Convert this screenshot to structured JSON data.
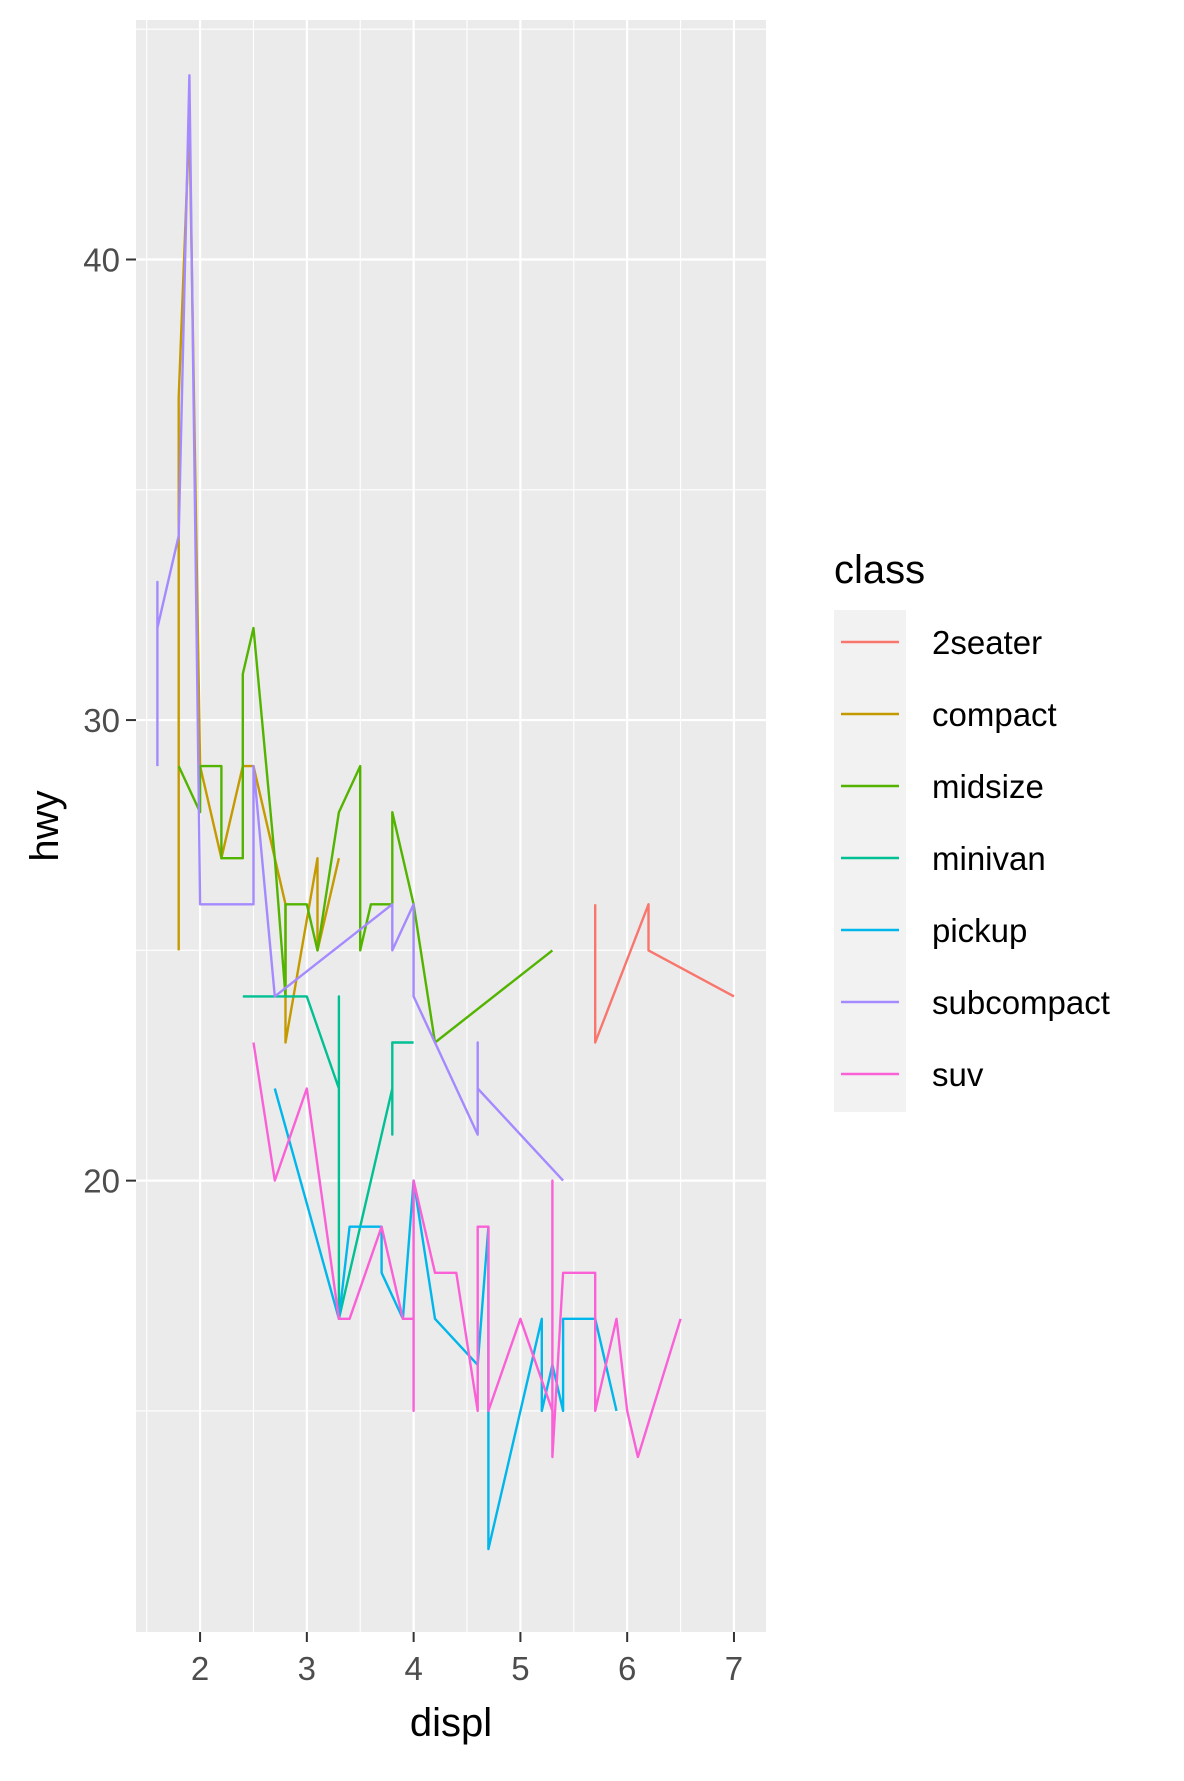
{
  "chart_data": {
    "type": "line",
    "title": "",
    "xlabel": "displ",
    "ylabel": "hwy",
    "xlim": [
      1.4,
      7.3
    ],
    "ylim": [
      10.2,
      45.2
    ],
    "x_ticks": [
      2,
      3,
      4,
      5,
      6,
      7
    ],
    "x_tick_labels": [
      "2",
      "3",
      "4",
      "5",
      "6",
      "7"
    ],
    "y_ticks": [
      20,
      30,
      40
    ],
    "y_tick_labels": [
      "20",
      "30",
      "40"
    ],
    "grid": true,
    "legend": {
      "title": "class",
      "position": "right"
    },
    "series": [
      {
        "name": "2seater",
        "color": "#F8766D",
        "points": [
          [
            5.7,
            26
          ],
          [
            5.7,
            23
          ],
          [
            6.2,
            26
          ],
          [
            6.2,
            25
          ],
          [
            7.0,
            24
          ]
        ]
      },
      {
        "name": "compact",
        "color": "#C49A00",
        "points": [
          [
            1.8,
            25
          ],
          [
            1.8,
            37
          ],
          [
            1.9,
            43
          ],
          [
            2.0,
            29
          ],
          [
            2.2,
            27
          ],
          [
            2.4,
            29
          ],
          [
            2.5,
            29
          ],
          [
            2.8,
            26
          ],
          [
            2.8,
            23
          ],
          [
            3.1,
            27
          ],
          [
            3.1,
            25
          ],
          [
            3.3,
            27
          ]
        ]
      },
      {
        "name": "midsize",
        "color": "#53B400",
        "points": [
          [
            1.8,
            29
          ],
          [
            2.0,
            28
          ],
          [
            2.0,
            29
          ],
          [
            2.2,
            29
          ],
          [
            2.2,
            27
          ],
          [
            2.4,
            27
          ],
          [
            2.4,
            31
          ],
          [
            2.5,
            32
          ],
          [
            2.7,
            27
          ],
          [
            2.8,
            24
          ],
          [
            2.8,
            26
          ],
          [
            3.0,
            26
          ],
          [
            3.1,
            25
          ],
          [
            3.3,
            28
          ],
          [
            3.5,
            29
          ],
          [
            3.5,
            25
          ],
          [
            3.6,
            26
          ],
          [
            3.8,
            26
          ],
          [
            3.8,
            28
          ],
          [
            4.0,
            26
          ],
          [
            4.2,
            23
          ],
          [
            5.3,
            25
          ]
        ]
      },
      {
        "name": "minivan",
        "color": "#00C094",
        "points": [
          [
            2.4,
            24
          ],
          [
            2.8,
            24
          ],
          [
            3.0,
            24
          ],
          [
            3.3,
            22
          ],
          [
            3.3,
            24
          ],
          [
            3.3,
            17
          ],
          [
            3.5,
            19
          ],
          [
            3.8,
            22
          ],
          [
            3.8,
            21
          ],
          [
            3.8,
            23
          ],
          [
            4.0,
            23
          ]
        ]
      },
      {
        "name": "pickup",
        "color": "#00B6EB",
        "points": [
          [
            2.7,
            22
          ],
          [
            3.3,
            17
          ],
          [
            3.4,
            19
          ],
          [
            3.7,
            19
          ],
          [
            3.7,
            18
          ],
          [
            3.9,
            17
          ],
          [
            4.0,
            20
          ],
          [
            4.2,
            17
          ],
          [
            4.6,
            16
          ],
          [
            4.7,
            19
          ],
          [
            4.7,
            12
          ],
          [
            5.2,
            17
          ],
          [
            5.2,
            15
          ],
          [
            5.3,
            16
          ],
          [
            5.4,
            15
          ],
          [
            5.4,
            17
          ],
          [
            5.7,
            17
          ],
          [
            5.9,
            15
          ]
        ]
      },
      {
        "name": "subcompact",
        "color": "#A58AFF",
        "points": [
          [
            1.6,
            29
          ],
          [
            1.6,
            33
          ],
          [
            1.6,
            32
          ],
          [
            1.8,
            34
          ],
          [
            1.9,
            44
          ],
          [
            2.0,
            26
          ],
          [
            2.5,
            26
          ],
          [
            2.5,
            29
          ],
          [
            2.7,
            24
          ],
          [
            3.8,
            26
          ],
          [
            3.8,
            25
          ],
          [
            4.0,
            26
          ],
          [
            4.0,
            24
          ],
          [
            4.6,
            21
          ],
          [
            4.6,
            23
          ],
          [
            4.6,
            22
          ],
          [
            5.4,
            20
          ]
        ]
      },
      {
        "name": "suv",
        "color": "#FB61D7",
        "points": [
          [
            2.5,
            23
          ],
          [
            2.7,
            20
          ],
          [
            3.0,
            22
          ],
          [
            3.3,
            17
          ],
          [
            3.4,
            17
          ],
          [
            3.7,
            19
          ],
          [
            3.9,
            17
          ],
          [
            4.0,
            17
          ],
          [
            4.0,
            15
          ],
          [
            4.0,
            20
          ],
          [
            4.2,
            18
          ],
          [
            4.4,
            18
          ],
          [
            4.6,
            15
          ],
          [
            4.6,
            19
          ],
          [
            4.7,
            19
          ],
          [
            4.7,
            15
          ],
          [
            5.0,
            17
          ],
          [
            5.3,
            15
          ],
          [
            5.3,
            20
          ],
          [
            5.3,
            14
          ],
          [
            5.4,
            18
          ],
          [
            5.7,
            18
          ],
          [
            5.7,
            15
          ],
          [
            5.9,
            17
          ],
          [
            6.0,
            15
          ],
          [
            6.1,
            14
          ],
          [
            6.5,
            17
          ]
        ]
      }
    ]
  }
}
